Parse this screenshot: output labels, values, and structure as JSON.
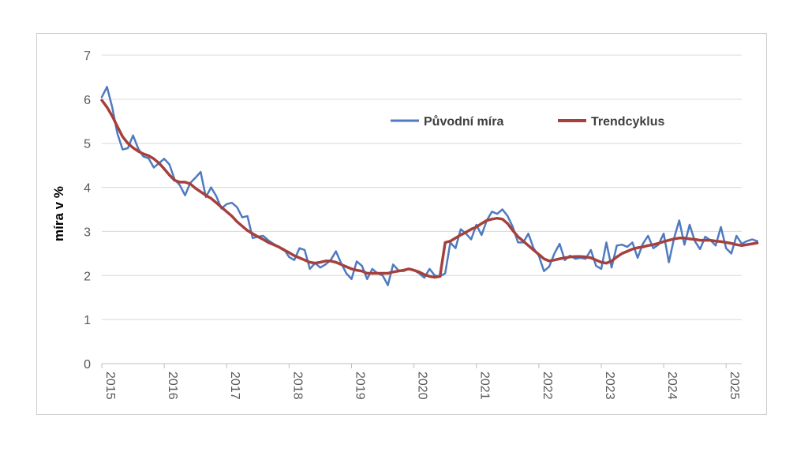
{
  "chart_data": {
    "type": "line",
    "title": "",
    "xlabel": "",
    "ylabel": "míra v %",
    "ylim": [
      0,
      7
    ],
    "yticks": [
      "0",
      "1",
      "2",
      "3",
      "4",
      "5",
      "6",
      "7"
    ],
    "xticks": [
      "2015",
      "2016",
      "2017",
      "2018",
      "2019",
      "2020",
      "2021",
      "2022",
      "2023",
      "2024",
      "2025"
    ],
    "xrange": [
      2015.0,
      2025.25
    ],
    "grid": true,
    "legend_position": "top-right",
    "x_step": 0.08333,
    "series": [
      {
        "name": "Původní míra",
        "color": "#4f7ac0",
        "x_start": 2015.0,
        "values": [
          6.05,
          6.28,
          5.82,
          5.22,
          4.86,
          4.89,
          5.18,
          4.88,
          4.7,
          4.66,
          4.45,
          4.55,
          4.65,
          4.52,
          4.18,
          4.05,
          3.82,
          4.1,
          4.22,
          4.35,
          3.78,
          4.0,
          3.8,
          3.52,
          3.62,
          3.65,
          3.55,
          3.32,
          3.35,
          2.85,
          2.88,
          2.9,
          2.8,
          2.72,
          2.65,
          2.6,
          2.42,
          2.35,
          2.62,
          2.58,
          2.15,
          2.28,
          2.18,
          2.25,
          2.35,
          2.55,
          2.28,
          2.05,
          1.92,
          2.32,
          2.22,
          1.92,
          2.15,
          2.05,
          2.0,
          1.78,
          2.25,
          2.12,
          2.1,
          2.15,
          2.12,
          2.05,
          1.95,
          2.15,
          2.0,
          1.98,
          2.05,
          2.75,
          2.62,
          3.05,
          2.95,
          2.82,
          3.15,
          2.92,
          3.25,
          3.45,
          3.4,
          3.5,
          3.35,
          3.1,
          2.75,
          2.75,
          2.95,
          2.62,
          2.45,
          2.1,
          2.2,
          2.5,
          2.72,
          2.35,
          2.45,
          2.38,
          2.4,
          2.38,
          2.58,
          2.22,
          2.15,
          2.75,
          2.18,
          2.68,
          2.7,
          2.65,
          2.75,
          2.4,
          2.72,
          2.9,
          2.62,
          2.7,
          2.95,
          2.3,
          2.85,
          3.25,
          2.7,
          3.15,
          2.78,
          2.6,
          2.88,
          2.8,
          2.68,
          3.1,
          2.62,
          2.5,
          2.9,
          2.72,
          2.78,
          2.82,
          2.78
        ]
      },
      {
        "name": "Trendcyklus",
        "color": "#a5403c",
        "x_start": 2015.0,
        "values": [
          5.98,
          5.82,
          5.62,
          5.38,
          5.15,
          5.0,
          4.9,
          4.82,
          4.76,
          4.72,
          4.65,
          4.55,
          4.42,
          4.28,
          4.16,
          4.12,
          4.12,
          4.08,
          3.98,
          3.9,
          3.82,
          3.75,
          3.65,
          3.55,
          3.45,
          3.35,
          3.22,
          3.12,
          3.02,
          2.95,
          2.88,
          2.82,
          2.75,
          2.7,
          2.65,
          2.58,
          2.52,
          2.45,
          2.4,
          2.35,
          2.3,
          2.28,
          2.3,
          2.33,
          2.33,
          2.3,
          2.25,
          2.2,
          2.15,
          2.12,
          2.1,
          2.05,
          2.05,
          2.05,
          2.05,
          2.05,
          2.08,
          2.1,
          2.12,
          2.15,
          2.12,
          2.08,
          2.02,
          1.98,
          1.96,
          1.98,
          2.75,
          2.78,
          2.85,
          2.92,
          2.98,
          3.05,
          3.1,
          3.18,
          3.25,
          3.28,
          3.3,
          3.28,
          3.18,
          3.02,
          2.88,
          2.78,
          2.68,
          2.58,
          2.48,
          2.38,
          2.33,
          2.35,
          2.38,
          2.4,
          2.42,
          2.43,
          2.43,
          2.42,
          2.4,
          2.35,
          2.3,
          2.28,
          2.33,
          2.42,
          2.5,
          2.55,
          2.6,
          2.63,
          2.65,
          2.68,
          2.7,
          2.73,
          2.77,
          2.8,
          2.83,
          2.85,
          2.85,
          2.83,
          2.82,
          2.8,
          2.8,
          2.8,
          2.78,
          2.77,
          2.75,
          2.73,
          2.7,
          2.68,
          2.7,
          2.72,
          2.74
        ]
      }
    ]
  }
}
